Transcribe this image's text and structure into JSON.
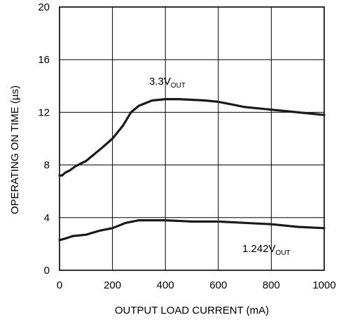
{
  "chart_data": {
    "type": "line",
    "title": "",
    "xlabel": "OUTPUT LOAD CURRENT (mA)",
    "ylabel": "OPERATING ON TIME (µs)",
    "xlim": [
      0,
      1000
    ],
    "ylim": [
      0,
      20
    ],
    "x_ticks": [
      "0",
      "200",
      "400",
      "600",
      "800",
      "1000"
    ],
    "y_ticks": [
      "0",
      "4",
      "8",
      "12",
      "16",
      "20"
    ],
    "grid": true,
    "series": [
      {
        "name": "3.3V_OUT",
        "label_main": "3.3V",
        "label_sub": "OUT",
        "x": [
          0,
          10,
          20,
          40,
          60,
          80,
          100,
          130,
          160,
          200,
          240,
          270,
          300,
          350,
          400,
          450,
          500,
          550,
          600,
          650,
          700,
          800,
          900,
          1000
        ],
        "y": [
          7.2,
          7.2,
          7.4,
          7.6,
          7.9,
          8.1,
          8.3,
          8.8,
          9.3,
          10.0,
          11.0,
          12.0,
          12.5,
          12.9,
          13.0,
          13.0,
          12.95,
          12.9,
          12.8,
          12.6,
          12.4,
          12.2,
          12.0,
          11.8
        ]
      },
      {
        "name": "1.242V_OUT",
        "label_main": "1.242V",
        "label_sub": "OUT",
        "x": [
          0,
          20,
          50,
          100,
          150,
          200,
          250,
          300,
          350,
          400,
          500,
          600,
          700,
          800,
          900,
          1000
        ],
        "y": [
          2.3,
          2.4,
          2.6,
          2.7,
          3.0,
          3.2,
          3.6,
          3.8,
          3.8,
          3.8,
          3.7,
          3.7,
          3.6,
          3.5,
          3.3,
          3.2
        ]
      }
    ]
  }
}
